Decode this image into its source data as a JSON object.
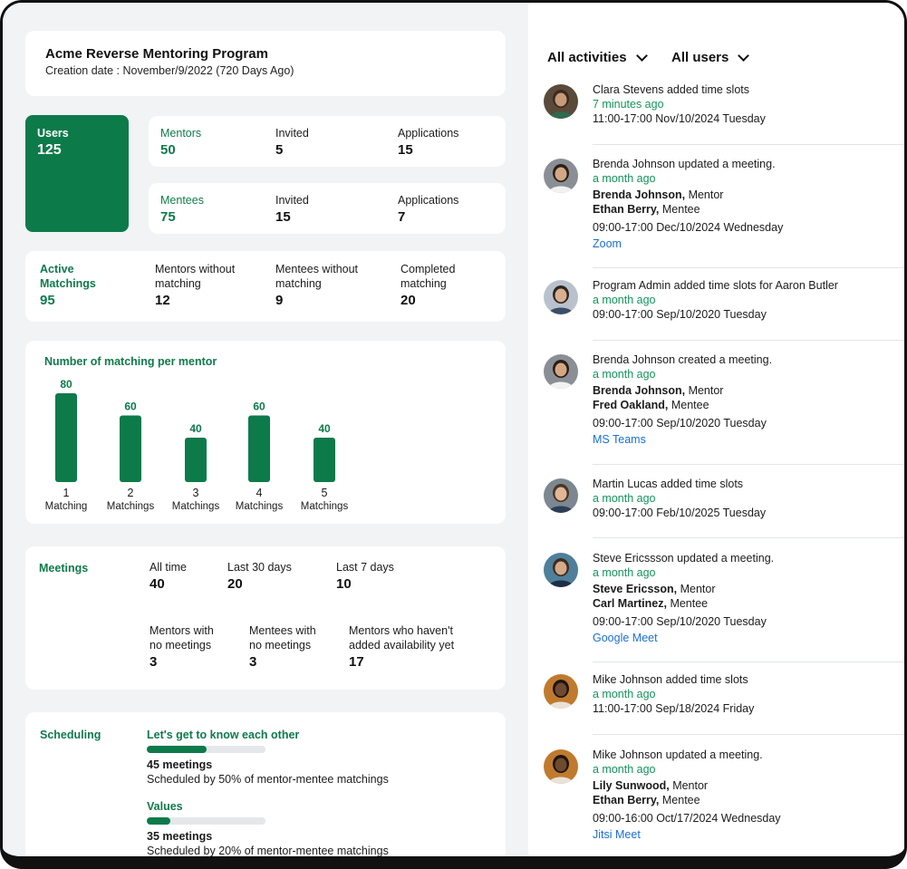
{
  "program": {
    "title": "Acme Reverse Mentoring Program",
    "created": "Creation date : November/9/2022  (720 Days Ago)"
  },
  "users": {
    "label": "Users",
    "value": "125"
  },
  "mentors": {
    "label": "Mentors",
    "value": "50",
    "invited_label": "Invited",
    "invited_value": "5",
    "apps_label": "Applications",
    "apps_value": "15"
  },
  "mentees": {
    "label": "Mentees",
    "value": "75",
    "invited_label": "Invited",
    "invited_value": "15",
    "apps_label": "Applications",
    "apps_value": "7"
  },
  "matching": {
    "active_label_1": "Active",
    "active_label_2": "Matchings",
    "active_value": "95",
    "mentors_wo_1": "Mentors without",
    "mentors_wo_2": "matching",
    "mentors_wo_value": "12",
    "mentees_wo_1": "Mentees without",
    "mentees_wo_2": "matching",
    "mentees_wo_value": "9",
    "completed_1": "Completed",
    "completed_2": "matching",
    "completed_value": "20"
  },
  "chart_data": {
    "type": "bar",
    "title": "Number of matching per mentor",
    "categories": [
      "1",
      "2",
      "3",
      "4",
      "5"
    ],
    "category_sublabels": [
      "Matching",
      "Matchings",
      "Matchings",
      "Matchings",
      "Matchings"
    ],
    "values": [
      80,
      60,
      40,
      60,
      40
    ],
    "ylim": [
      0,
      80
    ],
    "color": "#0d7a4a",
    "grid": false
  },
  "meetings": {
    "label": "Meetings",
    "all_label": "All time",
    "all_value": "40",
    "l30_label": "Last 30 days",
    "l30_value": "20",
    "l7_label": "Last 7 days",
    "l7_value": "10",
    "m_no_1": "Mentors with",
    "m_no_2": "no meetings",
    "m_no_value": "3",
    "e_no_1": "Mentees with",
    "e_no_2": "no meetings",
    "e_no_value": "3",
    "avail_1": "Mentors who haven't",
    "avail_2": "added availability yet",
    "avail_value": "17"
  },
  "scheduling": {
    "label": "Scheduling",
    "items": [
      {
        "title": "Let's get to know each other",
        "progress": 0.5,
        "count": "45 meetings",
        "desc": "Scheduled by 50% of mentor-mentee matchings"
      },
      {
        "title": "Values",
        "progress": 0.2,
        "count": "35 meetings",
        "desc": "Scheduled by 20% of mentor-mentee matchings"
      }
    ]
  },
  "filters": {
    "activities": "All activities",
    "users": "All users"
  },
  "activities": [
    {
      "line1": "Clara Stevens added time slots",
      "when": "7 minutes ago",
      "time": "11:00-17:00  Nov/10/2024 Tuesday",
      "avatar": "avatar-clara"
    },
    {
      "line1": "Brenda Johnson updated a meeting.",
      "when": "a month ago",
      "p1": "Brenda Johnson,",
      "r1": " Mentor",
      "p2": "Ethan Berry,",
      "r2": " Mentee",
      "time": "09:00-17:00  Dec/10/2024 Wednesday",
      "link": "Zoom",
      "avatar": "avatar-brenda"
    },
    {
      "line1": "Program Admin added time slots for Aaron Butler",
      "when": "a month ago",
      "time": "09:00-17:00  Sep/10/2020 Tuesday",
      "avatar": "avatar-admin"
    },
    {
      "line1": "Brenda Johnson created a meeting.",
      "when": "a month ago",
      "p1": "Brenda Johnson,",
      "r1": " Mentor",
      "p2": "Fred Oakland,",
      "r2": " Mentee",
      "time": "09:00-17:00  Sep/10/2020 Tuesday",
      "link": "MS Teams",
      "avatar": "avatar-brenda"
    },
    {
      "line1": "Martin Lucas added time slots",
      "when": "a month ago",
      "time": "09:00-17:00  Feb/10/2025 Tuesday",
      "avatar": "avatar-martin"
    },
    {
      "line1": "Steve Ericssson updated a meeting.",
      "when": "a month ago",
      "p1": "Steve Ericsson,",
      "r1": " Mentor",
      "p2": "Carl Martinez,",
      "r2": " Mentee",
      "time": "09:00-17:00  Sep/10/2020 Tuesday",
      "link": "Google Meet",
      "avatar": "avatar-steve"
    },
    {
      "line1": "Mike Johnson added time slots",
      "when": "a month ago",
      "time": "11:00-17:00  Sep/18/2024 Friday",
      "avatar": "avatar-mike"
    },
    {
      "line1": "Mike Johnson updated a meeting.",
      "when": "a month ago",
      "p1": "Lily Sunwood,",
      "r1": " Mentor",
      "p2": "Ethan Berry,",
      "r2": " Mentee",
      "time": "09:00-16:00  Oct/17/2024 Wednesday",
      "link": "Jitsi Meet",
      "avatar": "avatar-mike"
    }
  ]
}
